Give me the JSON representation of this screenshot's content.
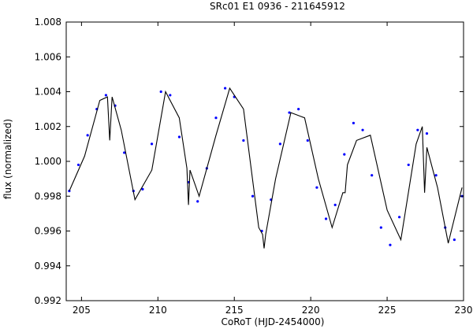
{
  "chart_data": {
    "type": "scatter",
    "title": "SRc01 E1 0936 - 211645912",
    "xlabel": "CoRoT (HJD-2454000)",
    "ylabel": "flux (normalized)",
    "xlim": [
      204,
      230
    ],
    "ylim": [
      0.992,
      1.008
    ],
    "x_ticks": [
      205,
      210,
      215,
      220,
      225,
      230
    ],
    "x_tick_labels": [
      "205",
      "210",
      "215",
      "220",
      "225",
      "230"
    ],
    "y_ticks": [
      0.992,
      0.994,
      0.996,
      0.998,
      1.0,
      1.002,
      1.004,
      1.006,
      1.008
    ],
    "y_tick_labels": [
      "0.992",
      "0.994",
      "0.996",
      "0.998",
      "1.000",
      "1.002",
      "1.004",
      "1.006",
      "1.008"
    ],
    "grid": false,
    "legend": "none",
    "series": [
      {
        "kind": "points",
        "color": "#0000ff",
        "x": [
          204.2,
          204.8,
          205.4,
          206.0,
          206.6,
          207.2,
          207.8,
          208.4,
          209.0,
          209.6,
          210.2,
          210.8,
          211.4,
          212.0,
          212.6,
          213.2,
          213.8,
          214.4,
          215.0,
          215.6,
          216.2,
          216.8,
          217.4,
          218.0,
          218.6,
          219.2,
          219.8,
          220.4,
          221.0,
          221.6,
          222.2,
          222.8,
          223.4,
          224.0,
          224.6,
          225.2,
          225.8,
          226.4,
          227.0,
          227.6,
          228.2,
          228.8,
          229.4,
          229.9
        ],
        "y": [
          0.9983,
          0.9998,
          1.0015,
          1.003,
          1.0038,
          1.0032,
          1.0005,
          0.9983,
          0.9984,
          1.001,
          1.004,
          1.0038,
          1.0014,
          0.9988,
          0.9977,
          0.9996,
          1.0025,
          1.0042,
          1.0037,
          1.0012,
          0.998,
          0.996,
          0.9978,
          1.001,
          1.0028,
          1.003,
          1.0012,
          0.9985,
          0.9967,
          0.9975,
          1.0004,
          1.0022,
          1.0018,
          0.9992,
          0.9962,
          0.9952,
          0.9968,
          0.9998,
          1.0018,
          1.0016,
          0.9992,
          0.9962,
          0.9955,
          0.998
        ]
      },
      {
        "kind": "model-line",
        "color": "#000000",
        "x": [
          204.2,
          205.2,
          206.2,
          206.7,
          206.85,
          207.0,
          207.6,
          208.5,
          209.6,
          210.5,
          211.4,
          211.9,
          212.0,
          212.1,
          212.7,
          213.8,
          214.7,
          215.6,
          216.6,
          216.85,
          216.95,
          217.05,
          217.7,
          218.7,
          219.6,
          220.5,
          221.4,
          222.1,
          222.25,
          222.4,
          223.0,
          223.9,
          225.0,
          225.9,
          226.9,
          227.3,
          227.45,
          227.6,
          228.3,
          229.0,
          229.9
        ],
        "y": [
          0.9983,
          1.0003,
          1.0035,
          1.0037,
          1.0012,
          1.0037,
          1.0018,
          0.9978,
          0.9995,
          1.004,
          1.0025,
          0.9996,
          0.9975,
          0.9995,
          0.998,
          1.0015,
          1.0042,
          1.003,
          0.9962,
          0.9958,
          0.995,
          0.9958,
          0.999,
          1.0028,
          1.0025,
          0.999,
          0.9962,
          0.9982,
          0.9982,
          0.9998,
          1.0012,
          1.0015,
          0.9972,
          0.9955,
          1.001,
          1.002,
          0.9982,
          1.0008,
          0.9985,
          0.9953,
          0.9985
        ]
      }
    ]
  }
}
